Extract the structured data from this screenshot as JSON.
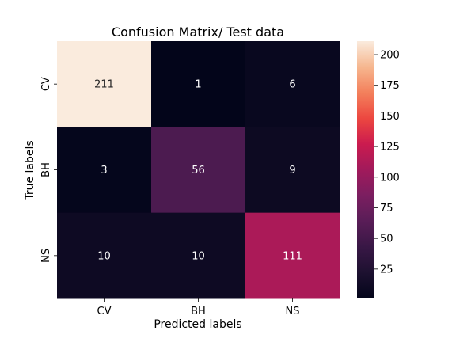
{
  "chart_data": {
    "type": "heatmap",
    "title": "Confusion Matrix/ Test data",
    "xlabel": "Predicted labels",
    "ylabel": "True labels",
    "x_categories": [
      "CV",
      "BH",
      "NS"
    ],
    "y_categories": [
      "CV",
      "BH",
      "NS"
    ],
    "values": [
      [
        211,
        1,
        6
      ],
      [
        3,
        56,
        9
      ],
      [
        10,
        10,
        111
      ]
    ],
    "colorbar": {
      "min": 1,
      "max": 211,
      "ticks": [
        25,
        50,
        75,
        100,
        125,
        150,
        175,
        200
      ],
      "colormap": "rocket"
    }
  }
}
